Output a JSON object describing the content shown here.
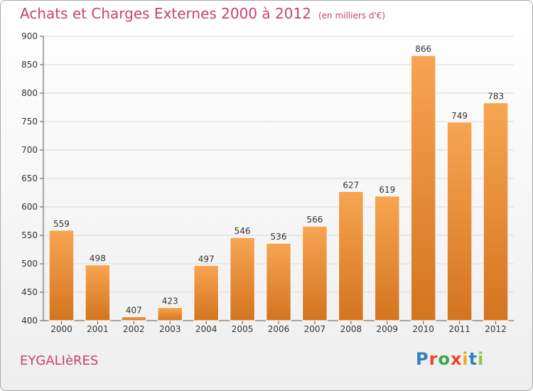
{
  "header": {
    "title": "Achats et Charges Externes 2000 à 2012",
    "unit": "(en milliers d'€)"
  },
  "footer": {
    "commune": "EYGALIèRES",
    "logo_letters": [
      "P",
      "r",
      "o",
      "x",
      "i",
      "t",
      "i"
    ],
    "logo_colors": [
      "#2f7fc1",
      "#e8462a",
      "#3aa648",
      "#e8462a",
      "#f3a51c",
      "#2f7fc1",
      "#8cc63f"
    ]
  },
  "chart_data": {
    "type": "bar",
    "categories": [
      "2000",
      "2001",
      "2002",
      "2003",
      "2004",
      "2005",
      "2006",
      "2007",
      "2008",
      "2009",
      "2010",
      "2011",
      "2012"
    ],
    "values": [
      559,
      498,
      407,
      423,
      497,
      546,
      536,
      566,
      627,
      619,
      866,
      749,
      783
    ],
    "title": "Achats et Charges Externes 2000 à 2012",
    "ylim": [
      400,
      900
    ],
    "yticks": [
      400,
      450,
      500,
      550,
      600,
      650,
      700,
      750,
      800,
      850,
      900
    ],
    "grid": true,
    "bar_color_light": "#f7a552",
    "bar_color_dark": "#d4741f"
  }
}
